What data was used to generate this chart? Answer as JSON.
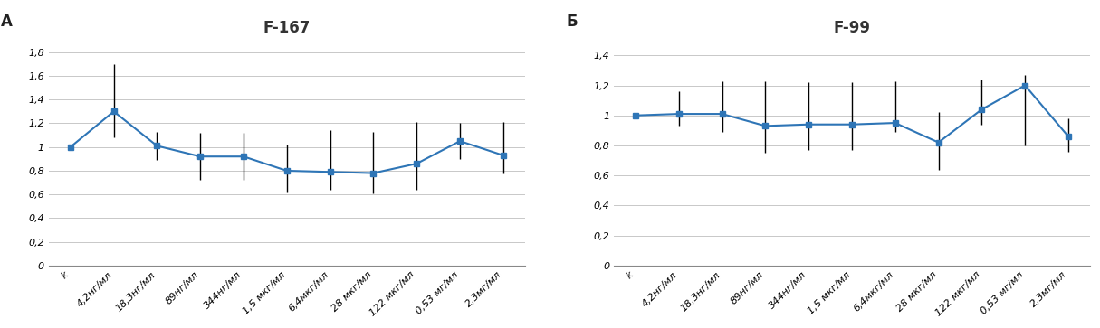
{
  "panel_A": {
    "title": "F-167",
    "label": "А",
    "categories": [
      "k",
      "4,2нг/мл",
      "18,3нг/мл",
      "89нг/мл",
      "344нг/мл",
      "1,5 мкг/мл",
      "6,4мкг/мл",
      "28 мкг/мл",
      "122 мкг/мл",
      "0,53 мг/мл",
      "2,3мг/мл"
    ],
    "values": [
      1.0,
      1.3,
      1.01,
      0.92,
      0.92,
      0.8,
      0.79,
      0.78,
      0.86,
      1.05,
      0.93
    ],
    "err_up": [
      0.0,
      0.4,
      0.12,
      0.2,
      0.2,
      0.22,
      0.35,
      0.35,
      0.35,
      0.15,
      0.28
    ],
    "err_dn": [
      0.0,
      0.22,
      0.12,
      0.2,
      0.2,
      0.18,
      0.15,
      0.17,
      0.22,
      0.15,
      0.15
    ],
    "ylim": [
      0,
      1.9
    ],
    "yticks": [
      0,
      0.2,
      0.4,
      0.6,
      0.8,
      1.0,
      1.2,
      1.4,
      1.6,
      1.8
    ],
    "ytick_labels": [
      "0",
      "0,2",
      "0,4",
      "0,6",
      "0,8",
      "1",
      "1,2",
      "1,4",
      "1,6",
      "1,8"
    ]
  },
  "panel_B": {
    "title": "F-99",
    "label": "Б",
    "categories": [
      "k",
      "4,2нг/мл",
      "18,3нг/мл",
      "89нг/мл",
      "344нг/мл",
      "1,5 мкг/мл",
      "6,4мкг/мл",
      "28 мкг/мл",
      "122 мкг/мл",
      "0,53 мг/мл",
      "2,3мг/мл"
    ],
    "values": [
      1.0,
      1.01,
      1.01,
      0.93,
      0.94,
      0.94,
      0.95,
      0.82,
      1.04,
      1.2,
      0.86
    ],
    "err_up": [
      0.0,
      0.15,
      0.22,
      0.3,
      0.28,
      0.28,
      0.28,
      0.2,
      0.2,
      0.07,
      0.12
    ],
    "err_dn": [
      0.0,
      0.08,
      0.12,
      0.18,
      0.17,
      0.17,
      0.06,
      0.18,
      0.1,
      0.4,
      0.1
    ],
    "ylim": [
      0,
      1.5
    ],
    "yticks": [
      0,
      0.2,
      0.4,
      0.6,
      0.8,
      1.0,
      1.2,
      1.4
    ],
    "ytick_labels": [
      "0",
      "0,2",
      "0,4",
      "0,6",
      "0,8",
      "1",
      "1,2",
      "1,4"
    ]
  },
  "line_color": "#2E75B6",
  "marker": "s",
  "markersize": 4,
  "linewidth": 1.5,
  "capsize": 0,
  "grid_color": "#C8C8C8",
  "title_fontsize": 12,
  "label_fontsize": 12,
  "tick_fontsize": 8,
  "background_color": "#ffffff"
}
